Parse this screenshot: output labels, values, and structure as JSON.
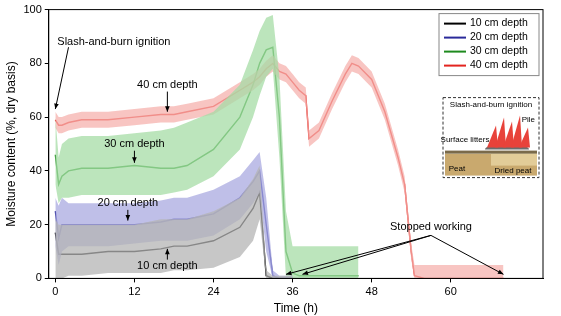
{
  "chart_data": {
    "type": "line",
    "x_label": "Time (h)",
    "y_label": "Moisture content (%, dry basis)",
    "xlim": [
      -1,
      74
    ],
    "xticks": [
      0,
      12,
      24,
      36,
      48,
      60
    ],
    "ylim": [
      0,
      100
    ],
    "yticks": [
      0,
      20,
      40,
      60,
      80,
      100
    ],
    "grid": false,
    "legend": "upper right",
    "x": [
      0,
      0.5,
      1,
      2,
      4,
      8,
      12,
      16,
      18,
      20,
      24,
      28,
      30,
      31,
      32,
      33,
      34,
      35,
      36,
      37,
      38,
      38.5,
      40,
      42,
      44,
      45,
      46,
      48,
      50,
      52,
      53,
      54,
      54.5,
      56,
      60,
      64,
      68
    ],
    "series": [
      {
        "name": "10 cm depth",
        "color": "#000000",
        "band_color": "#b4b4b4",
        "values": [
          17,
          9,
          9,
          9,
          9,
          10,
          10,
          11,
          12,
          12,
          14,
          19,
          26,
          32,
          1,
          0,
          0,
          0,
          0,
          null,
          null,
          null,
          null,
          null,
          null,
          null,
          null,
          null,
          null,
          null,
          null,
          null,
          null,
          null,
          null,
          null,
          null
        ],
        "lower": [
          0,
          0,
          0,
          1,
          1,
          2,
          2,
          2,
          3,
          3,
          4,
          8,
          14,
          22,
          0,
          0,
          0,
          0,
          0,
          null,
          null,
          null,
          null,
          null,
          null,
          null,
          null,
          null,
          null,
          null,
          null,
          null,
          null,
          null,
          null,
          null,
          null
        ],
        "upper": [
          22,
          20,
          20,
          20,
          20,
          20,
          20,
          22,
          22,
          22,
          25,
          30,
          37,
          42,
          3,
          1,
          1,
          1,
          1,
          null,
          null,
          null,
          null,
          null,
          null,
          null,
          null,
          null,
          null,
          null,
          null,
          null,
          null,
          null,
          null,
          null,
          null
        ]
      },
      {
        "name": "20 cm depth",
        "color": "#2a2a9a",
        "band_color": "#a9a9e0",
        "values": [
          25,
          15,
          20,
          20,
          20,
          20,
          20,
          21,
          22,
          22,
          24,
          30,
          36,
          40,
          20,
          1,
          0,
          0,
          0,
          null,
          null,
          null,
          null,
          null,
          null,
          null,
          null,
          null,
          null,
          null,
          null,
          null,
          null,
          null,
          null,
          null,
          null
        ],
        "lower": [
          12,
          5,
          10,
          12,
          12,
          12,
          13,
          14,
          14,
          14,
          16,
          22,
          28,
          32,
          10,
          0,
          0,
          0,
          0,
          null,
          null,
          null,
          null,
          null,
          null,
          null,
          null,
          null,
          null,
          null,
          null,
          null,
          null,
          null,
          null,
          null,
          null
        ],
        "upper": [
          30,
          27,
          30,
          28,
          28,
          28,
          28,
          29,
          30,
          30,
          33,
          38,
          44,
          47,
          30,
          3,
          1,
          1,
          1,
          null,
          null,
          null,
          null,
          null,
          null,
          null,
          null,
          null,
          null,
          null,
          null,
          null,
          null,
          null,
          null,
          null,
          null
        ]
      },
      {
        "name": "30 cm depth",
        "color": "#1e8a1e",
        "band_color": "#a6dca6",
        "values": [
          46,
          35,
          38,
          40,
          41,
          41,
          42,
          41,
          41,
          42,
          48,
          60,
          72,
          80,
          85,
          86,
          60,
          10,
          2,
          1,
          1,
          1,
          1,
          1,
          1,
          1,
          1,
          null,
          null,
          null,
          null,
          null,
          null,
          null,
          null,
          null,
          null
        ],
        "lower": [
          35,
          28,
          30,
          30,
          31,
          31,
          31,
          31,
          32,
          33,
          38,
          48,
          60,
          68,
          75,
          78,
          45,
          0,
          0,
          0,
          0,
          0,
          0,
          0,
          0,
          0,
          0,
          null,
          null,
          null,
          null,
          null,
          null,
          null,
          null,
          null,
          null
        ],
        "upper": [
          60,
          45,
          50,
          52,
          53,
          53,
          54,
          55,
          56,
          58,
          62,
          72,
          85,
          92,
          97,
          98,
          75,
          25,
          12,
          12,
          12,
          12,
          12,
          12,
          12,
          12,
          12,
          null,
          null,
          null,
          null,
          null,
          null,
          null,
          null,
          null,
          null
        ]
      },
      {
        "name": "40 cm depth",
        "color": "#e3241f",
        "band_color": "#f6b1ae",
        "values": [
          59,
          57,
          57,
          58,
          59,
          59,
          60,
          61,
          61,
          62,
          64,
          70,
          73,
          75,
          78,
          80,
          77,
          76,
          73,
          70,
          68,
          52,
          55,
          66,
          76,
          80,
          79,
          74,
          62,
          45,
          35,
          10,
          1,
          0,
          0,
          0,
          0
        ],
        "lower": [
          56,
          54,
          54,
          55,
          56,
          56,
          57,
          58,
          58,
          59,
          61,
          67,
          70,
          72,
          75,
          77,
          74,
          73,
          70,
          67,
          65,
          49,
          52,
          63,
          73,
          77,
          76,
          71,
          59,
          42,
          32,
          7,
          0,
          0,
          0,
          0,
          0
        ],
        "upper": [
          62,
          60,
          60,
          61,
          62,
          62,
          63,
          64,
          64,
          65,
          67,
          73,
          76,
          78,
          81,
          83,
          80,
          79,
          76,
          73,
          71,
          55,
          58,
          69,
          79,
          83,
          82,
          77,
          65,
          48,
          38,
          13,
          5,
          5,
          5,
          5,
          5
        ]
      }
    ],
    "annotations": [
      "Slash-and-burn ignition",
      "40 cm depth",
      "30 cm depth",
      "20 cm depth",
      "10 cm depth",
      "Stopped working"
    ],
    "inset": {
      "title": "Slash-and-burn ignition",
      "labels": [
        "Surface litters",
        "Pile",
        "Peat",
        "Dried peat"
      ]
    }
  }
}
